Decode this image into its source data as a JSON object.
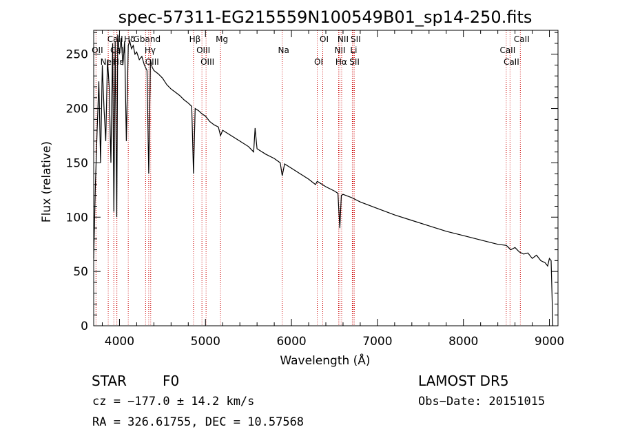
{
  "chart_data": {
    "type": "line",
    "title": "spec-57311-EG215559N100549B01_sp14-250.fits",
    "xlabel": "Wavelength (Å)",
    "ylabel": "Flux (relative)",
    "xlim": [
      3700,
      9100
    ],
    "ylim": [
      0,
      272
    ],
    "xticks": [
      4000,
      5000,
      6000,
      7000,
      8000,
      9000
    ],
    "yticks": [
      0,
      50,
      100,
      150,
      200,
      250
    ],
    "series": [
      {
        "values_description": "spectrum",
        "x": [
          3700,
          3720,
          3740,
          3760,
          3780,
          3800,
          3820,
          3840,
          3860,
          3880,
          3900,
          3920,
          3935,
          3950,
          3968,
          3980,
          4000,
          4020,
          4040,
          4060,
          4080,
          4102,
          4120,
          4140,
          4160,
          4180,
          4200,
          4230,
          4260,
          4290,
          4320,
          4340,
          4360,
          4380,
          4400,
          4450,
          4500,
          4550,
          4600,
          4650,
          4700,
          4750,
          4800,
          4840,
          4861,
          4880,
          4920,
          4960,
          5000,
          5050,
          5100,
          5150,
          5175,
          5200,
          5300,
          5400,
          5500,
          5560,
          5577,
          5600,
          5700,
          5800,
          5870,
          5893,
          5920,
          6000,
          6100,
          6200,
          6280,
          6300,
          6400,
          6500,
          6540,
          6563,
          6580,
          6600,
          6700,
          6800,
          7000,
          7200,
          7400,
          7600,
          7800,
          8000,
          8200,
          8400,
          8500,
          8550,
          8600,
          8650,
          8700,
          8750,
          8800,
          8850,
          8900,
          8950,
          8980,
          9000,
          9020,
          9040
        ],
        "y": [
          62,
          130,
          180,
          225,
          150,
          240,
          200,
          170,
          245,
          220,
          150,
          260,
          105,
          262,
          100,
          268,
          250,
          265,
          240,
          262,
          170,
          258,
          262,
          255,
          258,
          250,
          252,
          245,
          248,
          240,
          235,
          140,
          245,
          238,
          235,
          232,
          228,
          222,
          218,
          215,
          212,
          208,
          205,
          202,
          140,
          200,
          198,
          195,
          193,
          188,
          185,
          183,
          175,
          180,
          175,
          170,
          165,
          160,
          182,
          163,
          158,
          154,
          150,
          138,
          149,
          145,
          140,
          135,
          130,
          133,
          128,
          124,
          122,
          90,
          120,
          121,
          118,
          114,
          108,
          102,
          97,
          92,
          87,
          83,
          79,
          75,
          74,
          70,
          72,
          68,
          66,
          67,
          62,
          65,
          60,
          58,
          55,
          62,
          60,
          0
        ]
      }
    ],
    "spectral_lines": [
      {
        "label": "CaII",
        "x": 3934
      },
      {
        "label": "CaII",
        "x": 3968
      },
      {
        "label": "Hε",
        "x": 3970
      },
      {
        "label": "Hδ",
        "x": 4102
      },
      {
        "label": "OII",
        "x": 3727
      },
      {
        "label": "NeIII",
        "x": 3869
      },
      {
        "label": "Gband",
        "x": 4304
      },
      {
        "label": "Hγ",
        "x": 4340
      },
      {
        "label": "OIII",
        "x": 4363
      },
      {
        "label": "Hβ",
        "x": 4861
      },
      {
        "label": "OIII",
        "x": 4959
      },
      {
        "label": "OIII",
        "x": 5007
      },
      {
        "label": "Mg",
        "x": 5175
      },
      {
        "label": "Na",
        "x": 5893
      },
      {
        "label": "OI",
        "x": 6300
      },
      {
        "label": "OI",
        "x": 6364
      },
      {
        "label": "NII",
        "x": 6548
      },
      {
        "label": "Hα",
        "x": 6563
      },
      {
        "label": "NII",
        "x": 6584
      },
      {
        "label": "Li",
        "x": 6708
      },
      {
        "label": "SII",
        "x": 6717
      },
      {
        "label": "SII",
        "x": 6731
      },
      {
        "label": "CaII",
        "x": 8498
      },
      {
        "label": "CaII",
        "x": 8542
      },
      {
        "label": "CaII",
        "x": 8662
      }
    ],
    "grid": false,
    "legend": "none"
  },
  "info": {
    "object_type": "STAR",
    "subclass": "F0",
    "survey": "LAMOST DR5",
    "redshift": "cz = −177.0 ± 14.2 km/s",
    "obs_date": "Obs−Date: 20151015",
    "coords": "RA = 326.61755, DEC =  10.57568"
  },
  "colors": {
    "spectrum": "#000000",
    "line_marker": "#cc0000",
    "axis": "#000000"
  }
}
